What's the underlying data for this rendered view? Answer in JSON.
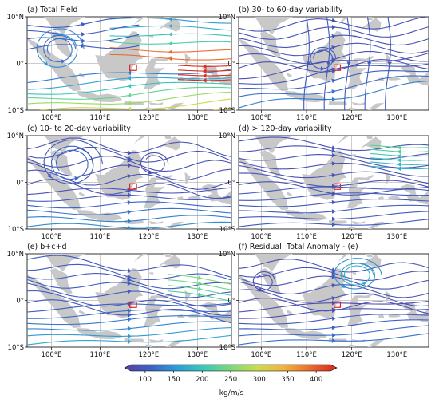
{
  "figure": {
    "colorbar": {
      "label": "kg/m/s",
      "range": [
        75,
        425
      ],
      "ticks": [
        "100",
        "150",
        "200",
        "250",
        "300",
        "350",
        "400"
      ],
      "colors": [
        "#5b3fa0",
        "#3b62c7",
        "#2c9fd6",
        "#39c9b8",
        "#7cd97a",
        "#c9dd4a",
        "#f2b33c",
        "#ec6a2c",
        "#d7261e"
      ],
      "extend": "both"
    },
    "land_color": "#c8c8c8",
    "marker_color": "#e8231c"
  },
  "chart_data": [
    {
      "type": "streamplot",
      "panel_label": "(a) Total Field",
      "xticks": [
        "100°E",
        "110°E",
        "120°E",
        "130°E"
      ],
      "yticks": [
        "10°N",
        "0°",
        "10°S"
      ],
      "xlim": [
        95,
        137
      ],
      "ylim": [
        -10,
        10
      ],
      "grid": true,
      "flow": "westward in the south, cyclonic circulation near 101°E 3°N, strong easterly jet in the east",
      "magnitude_range_kg_m_s": [
        80,
        420
      ]
    },
    {
      "type": "streamplot",
      "panel_label": "(b) 30- to 60-day variability",
      "xticks": [
        "100°E",
        "110°E",
        "120°E",
        "130°E"
      ],
      "yticks": [
        "10°N",
        "0°",
        "10°S"
      ],
      "xlim": [
        95,
        137
      ],
      "ylim": [
        -10,
        10
      ],
      "grid": true,
      "flow": "south-westerly in the south, northerly over the Sulawesi region",
      "magnitude_range_kg_m_s": [
        80,
        160
      ]
    },
    {
      "type": "streamplot",
      "panel_label": "(c) 10- to 20-day variability",
      "xticks": [
        "100°E",
        "110°E",
        "120°E",
        "130°E"
      ],
      "yticks": [
        "10°N",
        "0°",
        "10°S"
      ],
      "xlim": [
        95,
        137
      ],
      "ylim": [
        -10,
        10
      ],
      "grid": true,
      "flow": "cyclonic circulation near 104°E 4°N, westerly south of the equator",
      "magnitude_range_kg_m_s": [
        80,
        170
      ]
    },
    {
      "type": "streamplot",
      "panel_label": "(d) > 120-day variability",
      "xticks": [
        "100°E",
        "110°E",
        "120°E",
        "130°E"
      ],
      "yticks": [
        "10°N",
        "0°",
        "10°S"
      ],
      "xlim": [
        95,
        137
      ],
      "ylim": [
        -10,
        10
      ],
      "grid": true,
      "flow": "westerly across the basin, easterly jet in the north-east",
      "magnitude_range_kg_m_s": [
        80,
        230
      ]
    },
    {
      "type": "streamplot",
      "panel_label": "(e) b+c+d",
      "xticks": [
        "100°E",
        "110°E",
        "120°E",
        "130°E"
      ],
      "yticks": [
        "10°N",
        "0°",
        "10°S"
      ],
      "xlim": [
        95,
        137
      ],
      "ylim": [
        -10,
        10
      ],
      "grid": true,
      "flow": "westerly in the south, north-westerly in the north",
      "magnitude_range_kg_m_s": [
        80,
        250
      ]
    },
    {
      "type": "streamplot",
      "panel_label": "(f) Residual: Total Anomaly - (e)",
      "xticks": [
        "100°E",
        "110°E",
        "120°E",
        "130°E"
      ],
      "yticks": [
        "10°N",
        "0°",
        "10°S"
      ],
      "xlim": [
        95,
        137
      ],
      "ylim": [
        -10,
        10
      ],
      "grid": true,
      "flow": "anticyclone near 121°E 5°N, westerly in the south",
      "magnitude_range_kg_m_s": [
        80,
        200
      ]
    }
  ]
}
